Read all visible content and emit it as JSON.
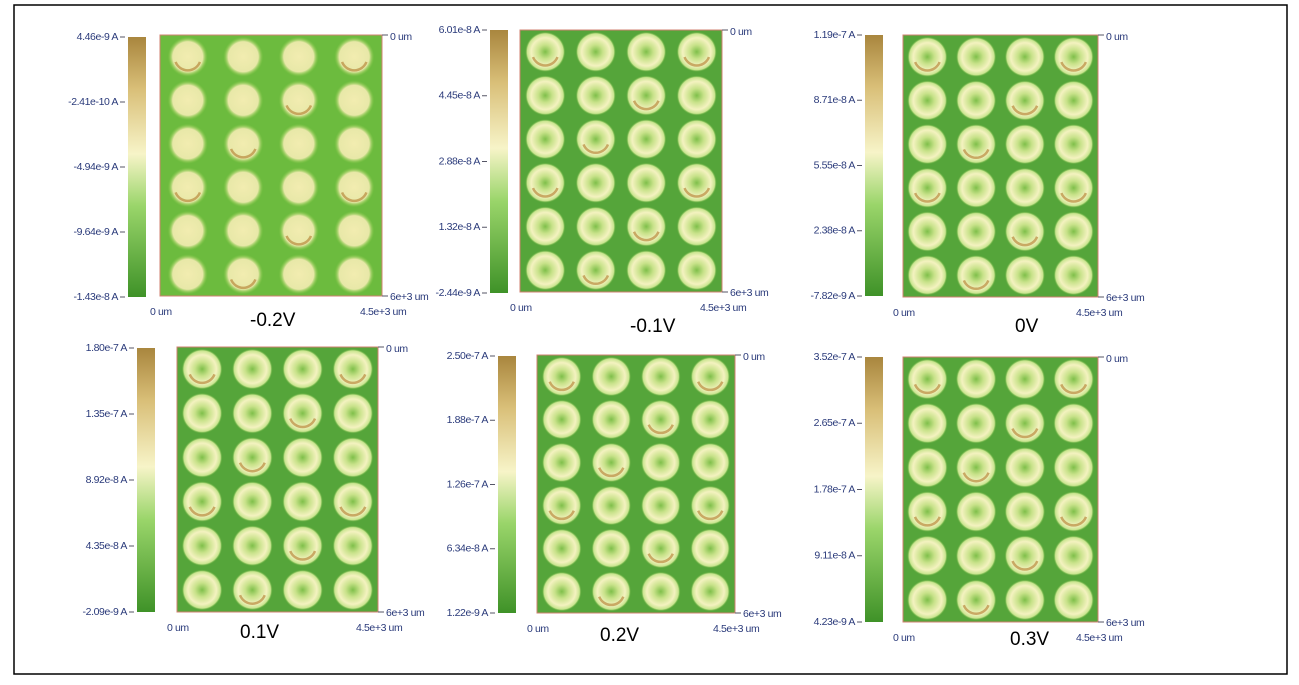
{
  "panels": [
    {
      "label": "-0.2V",
      "colorbar_ticks": [
        "4.46e-9 A",
        "-2.41e-10 A",
        "-4.94e-9 A",
        "-9.64e-9 A",
        "-1.43e-8 A"
      ],
      "x_start": "0 um",
      "x_end": "4.5e+3 um",
      "y_top": "0 um",
      "y_bottom": "6e+3 um"
    },
    {
      "label": "-0.1V",
      "colorbar_ticks": [
        "6.01e-8 A",
        "4.45e-8 A",
        "2.88e-8 A",
        "1.32e-8 A",
        "-2.44e-9 A"
      ],
      "x_start": "0 um",
      "x_end": "4.5e+3 um",
      "y_top": "0 um",
      "y_bottom": "6e+3 um"
    },
    {
      "label": "0V",
      "colorbar_ticks": [
        "1.19e-7 A",
        "8.71e-8 A",
        "5.55e-8 A",
        "2.38e-8 A",
        "-7.82e-9 A"
      ],
      "x_start": "0 um",
      "x_end": "4.5e+3 um",
      "y_top": "0 um",
      "y_bottom": "6e+3 um"
    },
    {
      "label": "0.1V",
      "colorbar_ticks": [
        "1.80e-7 A",
        "1.35e-7 A",
        "8.92e-8 A",
        "4.35e-8 A",
        "-2.09e-9 A"
      ],
      "x_start": "0 um",
      "x_end": "4.5e+3 um",
      "y_top": "0 um",
      "y_bottom": "6e+3 um"
    },
    {
      "label": "0.2V",
      "colorbar_ticks": [
        "2.50e-7 A",
        "1.88e-7 A",
        "1.26e-7 A",
        "6.34e-8 A",
        "1.22e-9 A"
      ],
      "x_start": "0 um",
      "x_end": "4.5e+3 um",
      "y_top": "0 um",
      "y_bottom": "6e+3 um"
    },
    {
      "label": "0.3V",
      "colorbar_ticks": [
        "3.52e-7 A",
        "2.65e-7 A",
        "1.78e-7 A",
        "9.11e-8 A",
        "4.23e-9 A"
      ],
      "x_start": "0 um",
      "x_end": "4.5e+3 um",
      "y_top": "0 um",
      "y_bottom": "6e+3 um"
    }
  ]
}
